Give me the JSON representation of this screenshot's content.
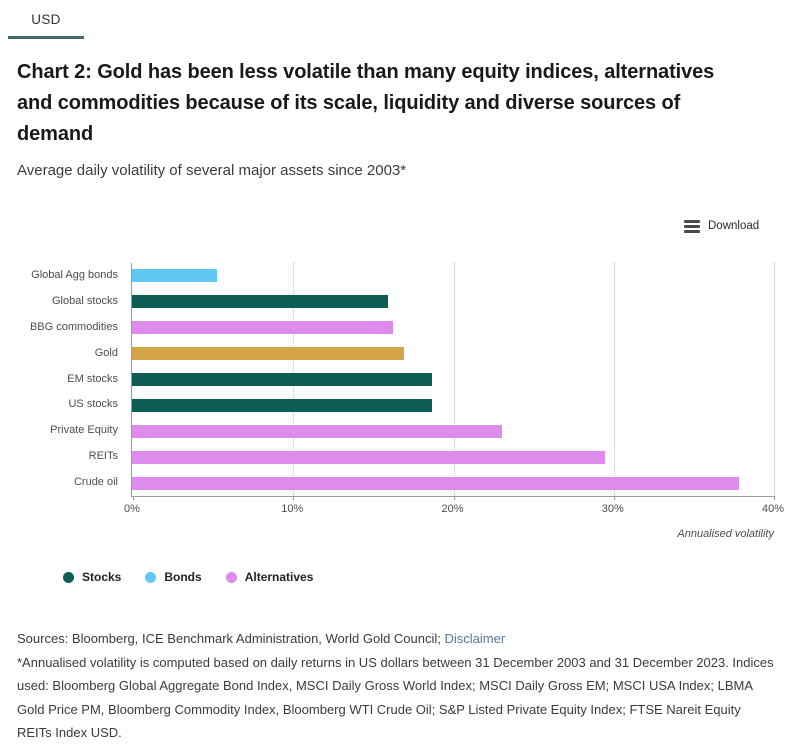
{
  "header": {
    "tab_label": "USD"
  },
  "toolbar": {
    "download_label": "Download"
  },
  "chart_data": {
    "type": "bar",
    "orientation": "horizontal",
    "title": "Chart 2: Gold has been less volatile than many equity indices, alternatives and commodities because of its scale, liquidity and diverse sources of demand",
    "subtitle": "Average daily volatility of several major assets since 2003*",
    "categories": [
      "Global Agg bonds",
      "Global stocks",
      "BBG commodities",
      "Gold",
      "EM stocks",
      "US stocks",
      "Private Equity",
      "REITs",
      "Crude oil"
    ],
    "values": [
      5.3,
      16.0,
      16.3,
      17.0,
      18.7,
      18.7,
      23.1,
      29.5,
      37.9
    ],
    "groups": [
      "Bonds",
      "Stocks",
      "Alternatives",
      "Gold",
      "Stocks",
      "Stocks",
      "Alternatives",
      "Alternatives",
      "Alternatives"
    ],
    "bar_colors": [
      "#5fc8f5",
      "#0c5e55",
      "#de8cec",
      "#d4a449",
      "#0c5e55",
      "#0c5e55",
      "#de8cec",
      "#de8cec",
      "#de8cec"
    ],
    "x_ticks": [
      "0%",
      "10%",
      "20%",
      "30%",
      "40%"
    ],
    "xlim": [
      0,
      40
    ],
    "xlabel": "Annualised volatility",
    "grid": "vertical-dotted",
    "legend_position": "bottom-left",
    "legend": [
      {
        "label": "Stocks",
        "color": "#0c5e55"
      },
      {
        "label": "Bonds",
        "color": "#5fc8f5"
      },
      {
        "label": "Alternatives",
        "color": "#de8cec"
      }
    ]
  },
  "footer": {
    "sources_prefix": "Sources: Bloomberg, ICE Benchmark Administration, World Gold Council; ",
    "disclaimer_label": "Disclaimer",
    "footnote": "*Annualised volatility is computed based on daily returns in US dollars between 31 December 2003 and 31 December 2023. Indices used: Bloomberg Global Aggregate Bond Index, MSCI Daily Gross World Index; MSCI Daily Gross EM; MSCI USA Index; LBMA Gold Price PM, Bloomberg Commodity Index, Bloomberg WTI Crude Oil; S&P Listed Private Equity Index; FTSE Nareit Equity REITs Index USD."
  }
}
